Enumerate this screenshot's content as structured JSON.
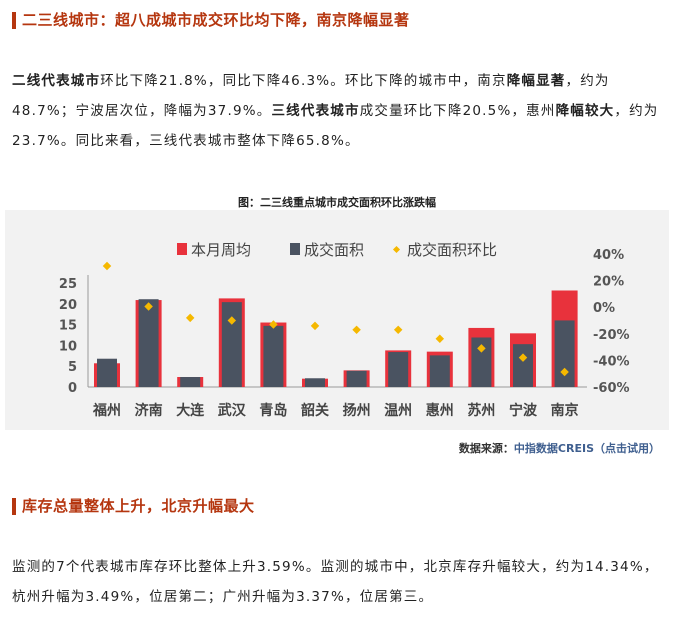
{
  "section1": {
    "heading": "二三线城市：超八成城市成交环比均下降，南京降幅显著",
    "para": [
      {
        "t": "二线代表城市",
        "b": true
      },
      {
        "t": "环比下降21.8%，同比下降46.3%。环比下降的城市中，南京",
        "b": false
      },
      {
        "t": "降幅显著",
        "b": true
      },
      {
        "t": "，约为48.7%；宁波居次位，降幅为37.9%。",
        "b": false
      },
      {
        "t": "三线代表城市",
        "b": true
      },
      {
        "t": "成交量环比下降20.5%，惠州",
        "b": false
      },
      {
        "t": "降幅较大",
        "b": true
      },
      {
        "t": "，约为23.7%。同比来看，三线代表城市整体下降65.8%。",
        "b": false
      }
    ]
  },
  "chart_caption": "图：二三线重点城市成交面积环比涨跌幅",
  "chart_data": {
    "type": "bar",
    "title": "图：二三线重点城市成交面积环比涨跌幅",
    "categories": [
      "福州",
      "济南",
      "大连",
      "武汉",
      "青岛",
      "韶关",
      "扬州",
      "温州",
      "惠州",
      "苏州",
      "宁波",
      "南京"
    ],
    "series": [
      {
        "name": "本月周均",
        "type": "bar",
        "axis": "left",
        "color": "#e8323c",
        "values": [
          5.7,
          20.9,
          2.4,
          21.3,
          15.5,
          2.0,
          4.0,
          8.8,
          8.5,
          14.2,
          12.9,
          23.2
        ]
      },
      {
        "name": "成交面积",
        "type": "bar",
        "axis": "left",
        "color": "#4a5361",
        "values": [
          6.8,
          21.1,
          2.4,
          20.4,
          14.7,
          2.1,
          3.9,
          8.4,
          7.6,
          11.9,
          10.3,
          16.0
        ]
      },
      {
        "name": "成交面积环比",
        "type": "scatter",
        "axis": "right",
        "color": "#f5b800",
        "values": [
          31,
          0.5,
          -8,
          -10,
          -13,
          -14,
          -17,
          -17,
          -23.7,
          -31,
          -37.9,
          -48.7
        ]
      }
    ],
    "left_axis": {
      "ylim": [
        0,
        25
      ],
      "ticks": [
        "0",
        "5",
        "10",
        "15",
        "20",
        "25"
      ]
    },
    "right_axis": {
      "ylim": [
        -60,
        40
      ],
      "ticks": [
        "40%",
        "20%",
        "0%",
        "-20%",
        "-40%",
        "-60%"
      ]
    },
    "legend": "top",
    "grid": false,
    "watermark": "中指数据 CREIS"
  },
  "source": {
    "label": "数据来源：",
    "link": "中指数据CREIS（点击试用）"
  },
  "section2": {
    "heading": "库存总量整体上升，北京升幅最大",
    "para": "监测的7个代表城市库存环比整体上升3.59%。监测的城市中，北京库存升幅较大，约为14.34%，杭州升幅为3.49%，位居第二；广州升幅为3.37%，位居第三。"
  }
}
